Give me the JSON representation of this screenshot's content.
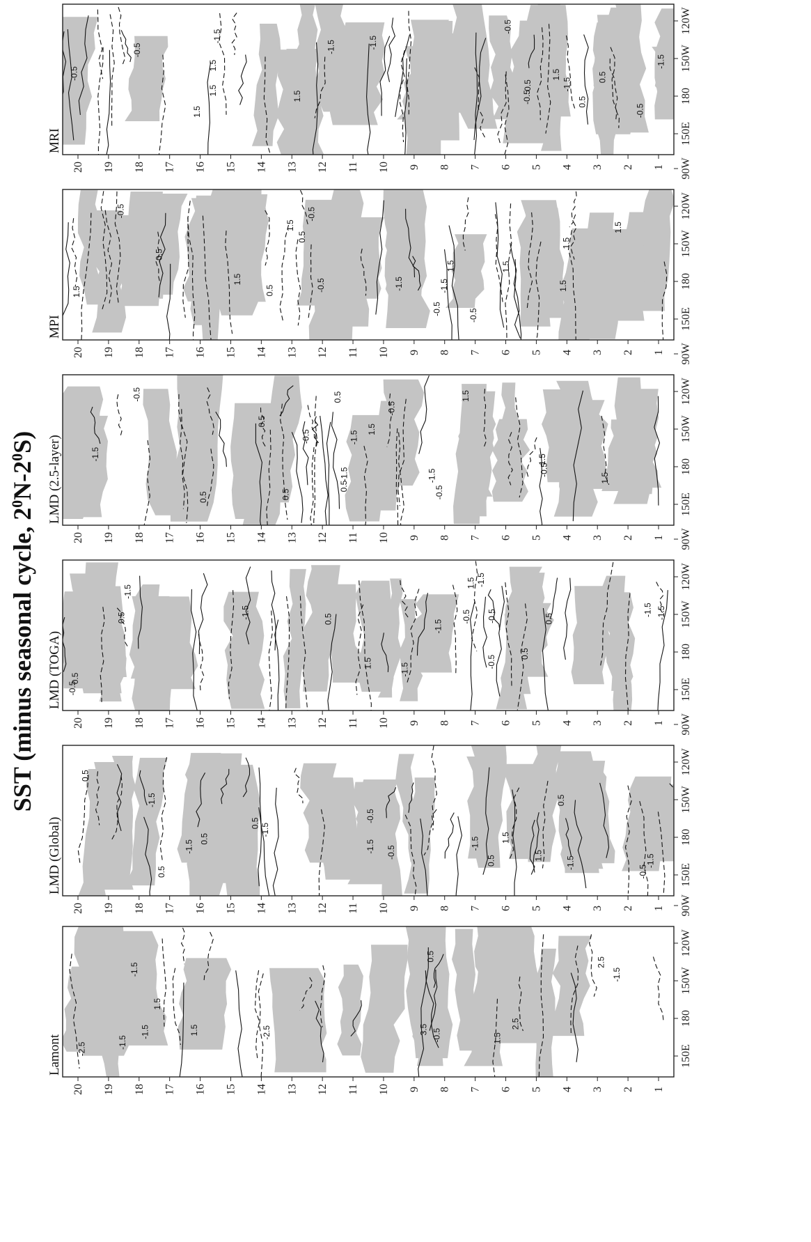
{
  "title_main": "SST (minus seasonal cycle, 2",
  "title_sup1": "0",
  "title_mid": "N-2",
  "title_sup2": "0",
  "title_end": "S)",
  "colors": {
    "shade": "#c4c4c4",
    "line": "#111111",
    "frame": "#222222"
  },
  "chart_data": {
    "type": "heatmap",
    "orientation": "rotated-90-ccw",
    "year_ticks": [
      "20",
      "19",
      "18",
      "17",
      "16",
      "15",
      "14",
      "13",
      "12",
      "11",
      "10",
      "9",
      "8",
      "7",
      "6",
      "5",
      "4",
      "3",
      "2",
      "1"
    ],
    "lon_ticks": [
      "150E",
      "180",
      "150W",
      "120W",
      "90W"
    ],
    "contour_labels": [
      "-0.5",
      "0.5",
      "1.5",
      "-1.5",
      "2.5",
      "-2.5",
      "3.5"
    ],
    "shading": "grey where anomaly > 0",
    "panels": [
      {
        "label": "MRI"
      },
      {
        "label": "MPI"
      },
      {
        "label": "LMD (2.5-layer)"
      },
      {
        "label": "LMD (TOGA)"
      },
      {
        "label": "LMD (Global)"
      },
      {
        "label": "Lamont"
      }
    ]
  }
}
